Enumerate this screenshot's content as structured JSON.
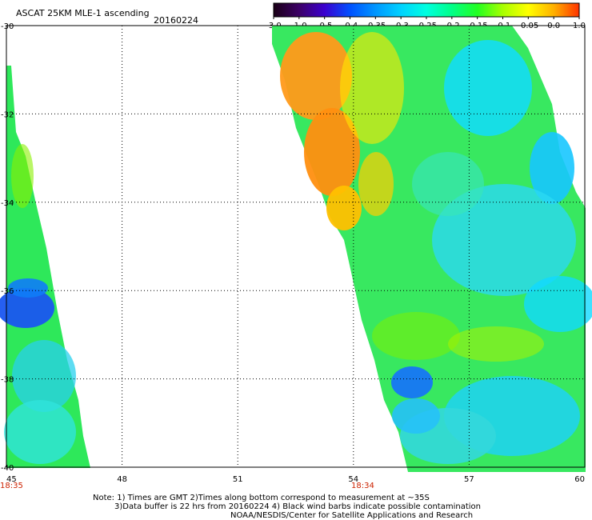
{
  "title": "ASCAT 25KM MLE-1 ascending",
  "date": "20160224",
  "colorbar": {
    "labels": [
      "-3.0",
      "-1.0",
      "-0.5",
      "-0.4",
      "-0.35",
      "-0.3",
      "-0.25",
      "-0.2",
      "-0.15",
      "-0.1",
      "-0.05",
      "0.0",
      "1.0"
    ],
    "colors": [
      "#1a0016",
      "#3c0066",
      "#3b00cf",
      "#0050ff",
      "#0096ff",
      "#00d2ff",
      "#00ffe0",
      "#00ff88",
      "#22ff22",
      "#a8ff00",
      "#ffff00",
      "#ffb000",
      "#ff3300"
    ]
  },
  "map": {
    "lat_labels": [
      "-30",
      "-32",
      "-34",
      "-36",
      "-38",
      "-40"
    ],
    "lon_labels": [
      "45",
      "48",
      "51",
      "54",
      "57",
      "60"
    ],
    "time_labels": [
      "18:35",
      "18:34"
    ]
  },
  "notes": {
    "line1": "Note: 1) Times are GMT 2)Times along bottom correspond to measurement at ~35S",
    "line2": "3)Data buffer is 22 hrs from 20160224 4) Black wind barbs indicate possible contamination",
    "line3": "NOAA/NESDIS/Center for Satellite Applications and Research"
  }
}
